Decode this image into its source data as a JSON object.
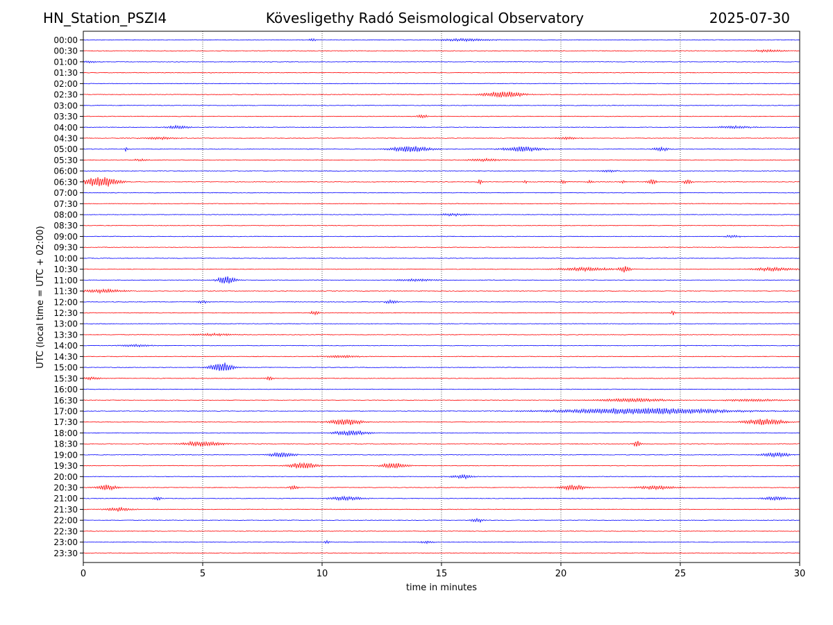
{
  "header": {
    "station": "HN_Station_PSZI4",
    "observatory": "Kövesligethy Radó Seismological Observatory",
    "date": "2025-07-30"
  },
  "chart_data": {
    "type": "line",
    "title": "Kövesligethy Radó Seismological Observatory",
    "xlabel": "time in minutes",
    "ylabel": "UTC (local time = UTC + 02:00)",
    "xlim": [
      0,
      30
    ],
    "x_ticks": [
      "0",
      "5",
      "10",
      "15",
      "20",
      "25",
      "30"
    ],
    "x_tick_values": [
      0,
      5,
      10,
      15,
      20,
      25,
      30
    ],
    "vertical_gridlines": [
      5,
      10,
      15,
      20,
      25
    ],
    "grid": "dotted vertical",
    "row_labels": [
      "00:00",
      "00:30",
      "01:00",
      "01:30",
      "02:00",
      "02:30",
      "03:00",
      "03:30",
      "04:00",
      "04:30",
      "05:00",
      "05:30",
      "06:00",
      "06:30",
      "07:00",
      "07:30",
      "08:00",
      "08:30",
      "09:00",
      "09:30",
      "10:00",
      "10:30",
      "11:00",
      "11:30",
      "12:00",
      "12:30",
      "13:00",
      "13:30",
      "14:00",
      "14:30",
      "15:00",
      "15:30",
      "16:00",
      "16:30",
      "17:00",
      "17:30",
      "18:00",
      "18:30",
      "19:00",
      "19:30",
      "20:00",
      "20:30",
      "21:00",
      "21:30",
      "22:00",
      "22:30",
      "23:00",
      "23:30"
    ],
    "colors": [
      "#0000ff",
      "#ff0000"
    ],
    "bursts": [
      {
        "row": 0,
        "t": 9.6,
        "amp": 2,
        "dur": 0.3
      },
      {
        "row": 0,
        "t": 16.0,
        "amp": 2,
        "dur": 2.0
      },
      {
        "row": 1,
        "t": 28.7,
        "amp": 2,
        "dur": 1.2
      },
      {
        "row": 2,
        "t": 0.3,
        "amp": 2,
        "dur": 0.4
      },
      {
        "row": 5,
        "t": 17.6,
        "amp": 5,
        "dur": 1.5
      },
      {
        "row": 7,
        "t": 14.2,
        "amp": 3,
        "dur": 0.4
      },
      {
        "row": 8,
        "t": 4.0,
        "amp": 3,
        "dur": 0.8
      },
      {
        "row": 8,
        "t": 27.3,
        "amp": 2,
        "dur": 1.4
      },
      {
        "row": 9,
        "t": 3.2,
        "amp": 2,
        "dur": 1.4
      },
      {
        "row": 9,
        "t": 20.3,
        "amp": 2,
        "dur": 0.8
      },
      {
        "row": 10,
        "t": 1.8,
        "amp": 4,
        "dur": 0.1
      },
      {
        "row": 10,
        "t": 13.7,
        "amp": 5,
        "dur": 1.5
      },
      {
        "row": 10,
        "t": 18.4,
        "amp": 4,
        "dur": 1.5
      },
      {
        "row": 10,
        "t": 24.2,
        "amp": 3,
        "dur": 0.6
      },
      {
        "row": 11,
        "t": 2.4,
        "amp": 2,
        "dur": 0.5
      },
      {
        "row": 11,
        "t": 16.8,
        "amp": 2,
        "dur": 1.5
      },
      {
        "row": 12,
        "t": 22.0,
        "amp": 2,
        "dur": 0.6
      },
      {
        "row": 13,
        "t": 0.7,
        "amp": 8,
        "dur": 1.3
      },
      {
        "row": 13,
        "t": 16.6,
        "amp": 6,
        "dur": 0.15
      },
      {
        "row": 13,
        "t": 18.5,
        "amp": 3,
        "dur": 0.15
      },
      {
        "row": 13,
        "t": 20.1,
        "amp": 3,
        "dur": 0.2
      },
      {
        "row": 13,
        "t": 21.2,
        "amp": 3,
        "dur": 0.2
      },
      {
        "row": 13,
        "t": 22.6,
        "amp": 3,
        "dur": 0.2
      },
      {
        "row": 13,
        "t": 23.8,
        "amp": 5,
        "dur": 0.3
      },
      {
        "row": 13,
        "t": 25.3,
        "amp": 4,
        "dur": 0.3
      },
      {
        "row": 16,
        "t": 15.5,
        "amp": 2,
        "dur": 1.0
      },
      {
        "row": 18,
        "t": 27.2,
        "amp": 2,
        "dur": 0.6
      },
      {
        "row": 21,
        "t": 21.0,
        "amp": 3,
        "dur": 2.0
      },
      {
        "row": 21,
        "t": 22.7,
        "amp": 5,
        "dur": 0.4
      },
      {
        "row": 21,
        "t": 28.9,
        "amp": 3,
        "dur": 1.6
      },
      {
        "row": 22,
        "t": 6.0,
        "amp": 6,
        "dur": 0.7
      },
      {
        "row": 22,
        "t": 14.0,
        "amp": 2,
        "dur": 1.5
      },
      {
        "row": 23,
        "t": 0.9,
        "amp": 3,
        "dur": 1.5
      },
      {
        "row": 24,
        "t": 5.0,
        "amp": 2,
        "dur": 0.5
      },
      {
        "row": 24,
        "t": 12.9,
        "amp": 3,
        "dur": 0.5
      },
      {
        "row": 25,
        "t": 9.7,
        "amp": 3,
        "dur": 0.4
      },
      {
        "row": 25,
        "t": 24.7,
        "amp": 4,
        "dur": 0.15
      },
      {
        "row": 27,
        "t": 5.5,
        "amp": 2,
        "dur": 1.5
      },
      {
        "row": 28,
        "t": 2.2,
        "amp": 2,
        "dur": 1.2
      },
      {
        "row": 29,
        "t": 10.8,
        "amp": 2,
        "dur": 1.4
      },
      {
        "row": 30,
        "t": 5.8,
        "amp": 7,
        "dur": 0.9
      },
      {
        "row": 31,
        "t": 0.3,
        "amp": 2,
        "dur": 0.8
      },
      {
        "row": 31,
        "t": 7.8,
        "amp": 3,
        "dur": 0.3
      },
      {
        "row": 33,
        "t": 23.0,
        "amp": 3,
        "dur": 2.5
      },
      {
        "row": 33,
        "t": 28.0,
        "amp": 2,
        "dur": 2.0
      },
      {
        "row": 34,
        "t": 23.5,
        "amp": 5,
        "dur": 6.5
      },
      {
        "row": 35,
        "t": 11.0,
        "amp": 5,
        "dur": 1.2
      },
      {
        "row": 35,
        "t": 28.5,
        "amp": 5,
        "dur": 1.5
      },
      {
        "row": 36,
        "t": 11.2,
        "amp": 4,
        "dur": 1.3
      },
      {
        "row": 37,
        "t": 5.0,
        "amp": 4,
        "dur": 1.5
      },
      {
        "row": 37,
        "t": 23.2,
        "amp": 5,
        "dur": 0.3
      },
      {
        "row": 38,
        "t": 8.3,
        "amp": 4,
        "dur": 1.0
      },
      {
        "row": 38,
        "t": 29.0,
        "amp": 4,
        "dur": 1.0
      },
      {
        "row": 39,
        "t": 9.2,
        "amp": 5,
        "dur": 1.0
      },
      {
        "row": 39,
        "t": 13.0,
        "amp": 4,
        "dur": 1.0
      },
      {
        "row": 40,
        "t": 15.9,
        "amp": 3,
        "dur": 0.8
      },
      {
        "row": 41,
        "t": 1.0,
        "amp": 4,
        "dur": 0.8
      },
      {
        "row": 41,
        "t": 8.8,
        "amp": 4,
        "dur": 0.3
      },
      {
        "row": 41,
        "t": 20.5,
        "amp": 4,
        "dur": 1.0
      },
      {
        "row": 41,
        "t": 24.0,
        "amp": 3,
        "dur": 1.5
      },
      {
        "row": 42,
        "t": 3.1,
        "amp": 3,
        "dur": 0.3
      },
      {
        "row": 42,
        "t": 11.0,
        "amp": 3,
        "dur": 1.3
      },
      {
        "row": 42,
        "t": 29.0,
        "amp": 3,
        "dur": 1.0
      },
      {
        "row": 43,
        "t": 1.5,
        "amp": 3,
        "dur": 1.0
      },
      {
        "row": 44,
        "t": 16.5,
        "amp": 3,
        "dur": 0.5
      },
      {
        "row": 46,
        "t": 10.2,
        "amp": 3,
        "dur": 0.2
      },
      {
        "row": 46,
        "t": 14.4,
        "amp": 2,
        "dur": 0.5
      }
    ]
  }
}
